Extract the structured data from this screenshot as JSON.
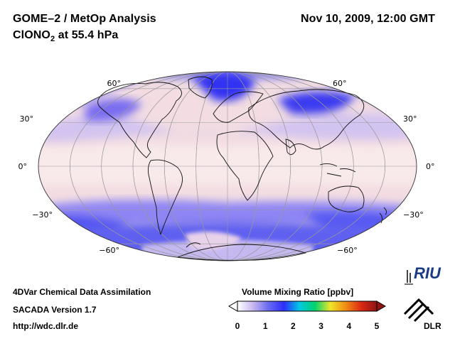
{
  "header": {
    "title": "GOME–2 / MetOp Analysis",
    "species_main": "ClONO",
    "species_sub": "2",
    "species_rest": " at 55.4 hPa",
    "date": "Nov 10, 2009, 12:00 GMT"
  },
  "map": {
    "projection": "Mollweide",
    "lat_labels": {
      "left": [
        "60°",
        "30°",
        "0°",
        "−30°",
        "−60°"
      ],
      "right": [
        "60°",
        "30°",
        "0°",
        "−30°",
        "−60°"
      ]
    },
    "colors": {
      "low": "#3a4cf0",
      "mid": "#b9b8f6",
      "background": "#f3dde2",
      "graticule": "#9a9a9a"
    }
  },
  "footer": {
    "line1": "4DVar Chemical Data Assimilation",
    "line2": "SACADA Version 1.7",
    "line3": "http://wdc.dlr.de"
  },
  "colorbar": {
    "title": "Volume Mixing Ratio [ppbv]",
    "ticks": [
      "0",
      "1",
      "2",
      "3",
      "4",
      "5"
    ],
    "range": [
      0,
      5
    ],
    "colors": [
      "#ffffff",
      "#c8b7f0",
      "#6a6af0",
      "#2d2dfa",
      "#00c8e6",
      "#00d26e",
      "#f0e628",
      "#f08c14",
      "#dc2814",
      "#8c1414"
    ]
  },
  "logos": {
    "riu": "RIU",
    "dlr": "DLR"
  }
}
